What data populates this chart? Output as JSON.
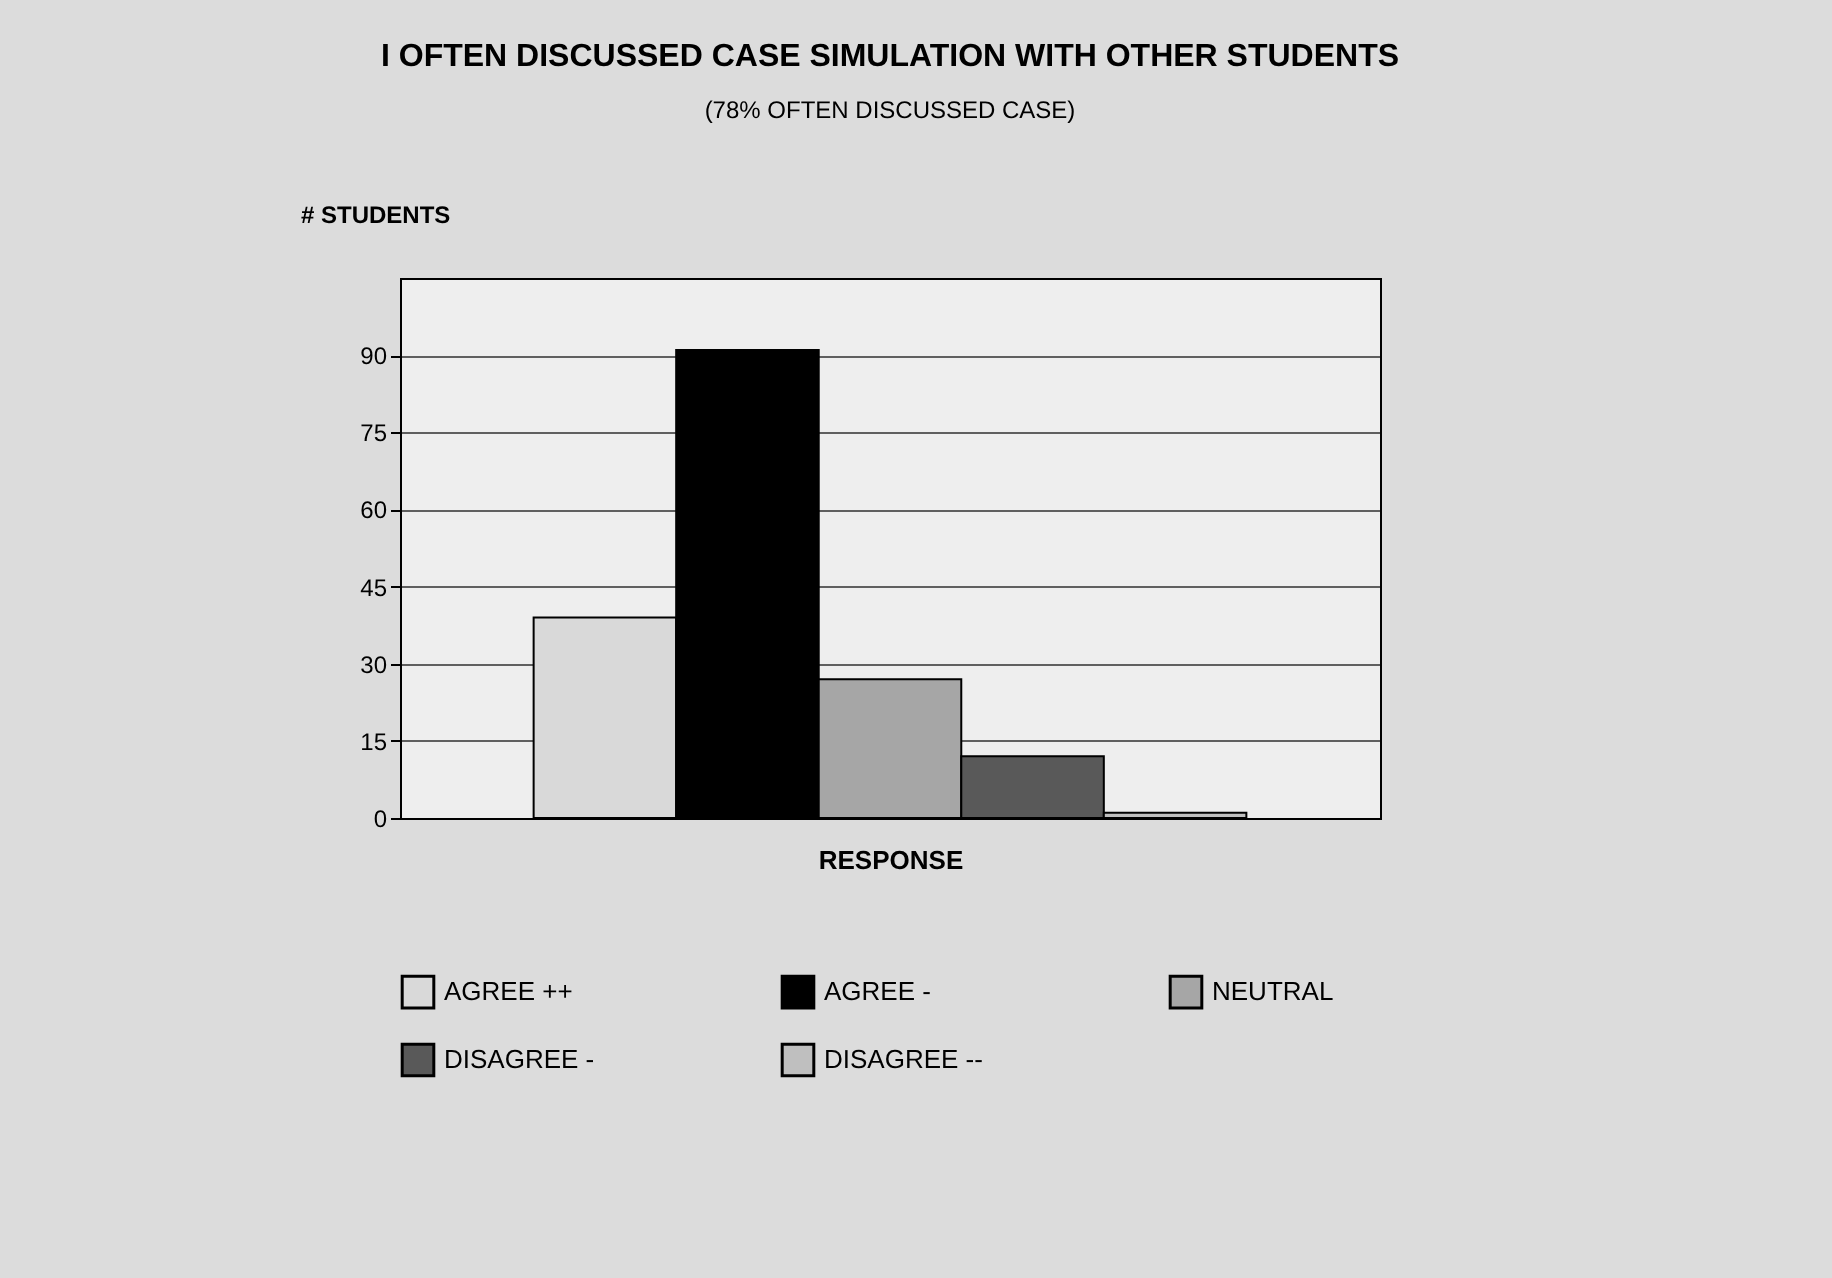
{
  "chart_data": {
    "type": "bar",
    "title": "I OFTEN DISCUSSED CASE SIMULATION WITH OTHER STUDENTS",
    "subtitle": "(78% OFTEN DISCUSSED CASE)",
    "xlabel": "RESPONSE",
    "ylabel": "# STUDENTS",
    "categories": [
      null
    ],
    "series": [
      {
        "name": "AGREE ++",
        "color": "#d9d9d9",
        "values": [
          39
        ]
      },
      {
        "name": "AGREE -",
        "color": "#000000",
        "values": [
          91
        ]
      },
      {
        "name": "NEUTRAL",
        "color": "#a6a6a6",
        "values": [
          27
        ]
      },
      {
        "name": "DISAGREE -",
        "color": "#595959",
        "values": [
          12
        ]
      },
      {
        "name": "DISAGREE --",
        "color": "#bfbfbf",
        "values": [
          1
        ]
      }
    ],
    "ylim": [
      0,
      105
    ],
    "yticks": [
      0,
      15,
      30,
      45,
      60,
      75,
      90
    ],
    "grid": "y",
    "legend": "bottom"
  }
}
